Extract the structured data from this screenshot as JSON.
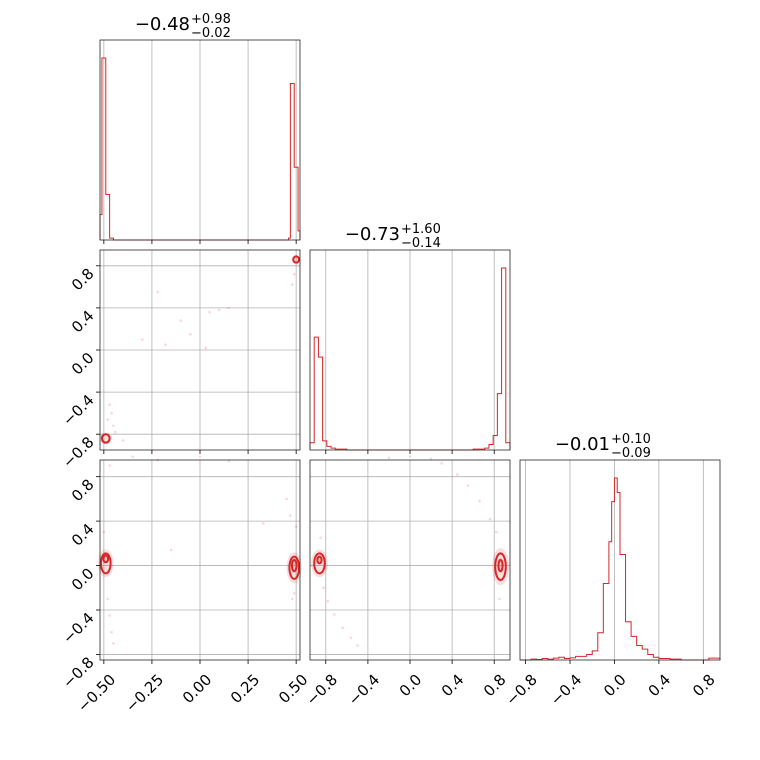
{
  "chart_data": {
    "type": "corner",
    "color": "#d62728",
    "grid": true,
    "parameters": [
      {
        "title": {
          "median": "−0.48",
          "plus": "+0.98",
          "minus": "−0.02"
        },
        "range": [
          -0.52,
          0.52
        ],
        "ticks": [
          -0.5,
          -0.25,
          0.0,
          0.25,
          0.5
        ],
        "tick_labels": [
          "−0.50",
          "−0.25",
          "0.00",
          "0.25",
          "0.50"
        ]
      },
      {
        "title": {
          "median": "−0.73",
          "plus": "+1.60",
          "minus": "−0.14"
        },
        "range": [
          -0.95,
          0.95
        ],
        "ticks": [
          -0.8,
          -0.4,
          0.0,
          0.4,
          0.8
        ],
        "tick_labels": [
          "−0.8",
          "−0.4",
          "0.0",
          "0.4",
          "0.8"
        ]
      },
      {
        "title": {
          "median": "−0.01",
          "plus": "+0.10",
          "minus": "−0.09"
        },
        "range": [
          -0.85,
          0.95
        ],
        "ticks": [
          -0.8,
          -0.4,
          0.0,
          0.4,
          0.8
        ],
        "tick_labels": [
          "−0.8",
          "−0.4",
          "0.0",
          "0.4",
          "0.8"
        ]
      }
    ],
    "histograms": [
      {
        "param": 0,
        "bins": [
          [
            -0.52,
            -0.51,
            0.14
          ],
          [
            -0.51,
            -0.49,
            1.0
          ],
          [
            -0.49,
            -0.47,
            0.25
          ],
          [
            -0.47,
            -0.45,
            0.01
          ],
          [
            -0.45,
            0.46,
            0.0
          ],
          [
            0.46,
            0.47,
            0.01
          ],
          [
            0.47,
            0.49,
            0.86
          ],
          [
            0.49,
            0.51,
            0.4
          ],
          [
            0.51,
            0.52,
            0.05
          ]
        ]
      },
      {
        "param": 1,
        "bins": [
          [
            -0.95,
            -0.91,
            0.04
          ],
          [
            -0.91,
            -0.87,
            0.62
          ],
          [
            -0.87,
            -0.83,
            0.51
          ],
          [
            -0.83,
            -0.79,
            0.05
          ],
          [
            -0.79,
            -0.75,
            0.02
          ],
          [
            -0.75,
            -0.71,
            0.01
          ],
          [
            -0.71,
            -0.6,
            0.005
          ],
          [
            -0.6,
            0.6,
            0.0
          ],
          [
            0.6,
            0.71,
            0.005
          ],
          [
            0.71,
            0.75,
            0.01
          ],
          [
            0.75,
            0.79,
            0.03
          ],
          [
            0.79,
            0.83,
            0.08
          ],
          [
            0.83,
            0.87,
            0.31
          ],
          [
            0.87,
            0.91,
            1.0
          ],
          [
            0.91,
            0.95,
            0.04
          ]
        ]
      },
      {
        "param": 2,
        "bins": [
          [
            -0.85,
            -0.75,
            0.0
          ],
          [
            -0.75,
            -0.7,
            0.005
          ],
          [
            -0.7,
            -0.65,
            0.003
          ],
          [
            -0.65,
            -0.6,
            0.008
          ],
          [
            -0.6,
            -0.55,
            0.004
          ],
          [
            -0.55,
            -0.5,
            0.01
          ],
          [
            -0.5,
            -0.45,
            0.015
          ],
          [
            -0.45,
            -0.4,
            0.008
          ],
          [
            -0.4,
            -0.35,
            0.012
          ],
          [
            -0.35,
            -0.3,
            0.02
          ],
          [
            -0.3,
            -0.25,
            0.02
          ],
          [
            -0.25,
            -0.2,
            0.03
          ],
          [
            -0.2,
            -0.15,
            0.05
          ],
          [
            -0.15,
            -0.1,
            0.15
          ],
          [
            -0.1,
            -0.05,
            0.42
          ],
          [
            -0.05,
            -0.025,
            0.65
          ],
          [
            -0.025,
            0.0,
            0.87
          ],
          [
            0.0,
            0.025,
            1.0
          ],
          [
            0.025,
            0.05,
            0.92
          ],
          [
            0.05,
            0.1,
            0.58
          ],
          [
            0.1,
            0.15,
            0.21
          ],
          [
            0.15,
            0.2,
            0.13
          ],
          [
            0.2,
            0.25,
            0.08
          ],
          [
            0.25,
            0.3,
            0.06
          ],
          [
            0.3,
            0.35,
            0.03
          ],
          [
            0.35,
            0.4,
            0.015
          ],
          [
            0.4,
            0.5,
            0.008
          ],
          [
            0.5,
            0.6,
            0.005
          ],
          [
            0.6,
            0.85,
            0.0
          ],
          [
            0.85,
            0.95,
            0.01
          ]
        ]
      }
    ],
    "pairs": [
      {
        "x_param": 0,
        "y_param": 1,
        "contours": [
          {
            "cx": -0.49,
            "cy": -0.84,
            "rx": 0.02,
            "ry": 0.04
          },
          {
            "cx": 0.5,
            "cy": 0.86,
            "rx": 0.015,
            "ry": 0.03
          }
        ],
        "points": [
          [
            -0.47,
            -0.52
          ],
          [
            -0.46,
            -0.6
          ],
          [
            -0.45,
            -0.72
          ],
          [
            -0.48,
            -0.66
          ],
          [
            -0.44,
            -0.78
          ],
          [
            -0.22,
            0.55
          ],
          [
            -0.1,
            0.28
          ],
          [
            -0.05,
            0.15
          ],
          [
            0.05,
            0.36
          ],
          [
            0.1,
            0.38
          ],
          [
            0.15,
            0.4
          ],
          [
            -0.18,
            0.05
          ],
          [
            0.49,
            0.72
          ],
          [
            0.48,
            0.62
          ],
          [
            -0.4,
            -0.86
          ],
          [
            -0.3,
            0.1
          ],
          [
            0.03,
            0.02
          ]
        ]
      },
      {
        "x_param": 0,
        "y_param": 2,
        "contours": [
          {
            "cx": -0.49,
            "cy": 0.02,
            "rx": 0.025,
            "ry": 0.09
          },
          {
            "cx": 0.49,
            "cy": -0.02,
            "rx": 0.025,
            "ry": 0.1
          },
          {
            "cx": -0.49,
            "cy": 0.06,
            "rx": 0.012,
            "ry": 0.03
          },
          {
            "cx": 0.49,
            "cy": 0.0,
            "rx": 0.012,
            "ry": 0.05
          }
        ],
        "points": [
          [
            -0.48,
            -0.3
          ],
          [
            -0.47,
            -0.45
          ],
          [
            -0.46,
            -0.6
          ],
          [
            -0.45,
            -0.7
          ],
          [
            -0.5,
            0.3
          ],
          [
            -0.47,
            0.9
          ],
          [
            -0.22,
            0.95
          ],
          [
            -0.35,
            0.98
          ],
          [
            0.0,
            0.98
          ],
          [
            0.15,
            0.94
          ],
          [
            0.47,
            0.45
          ],
          [
            0.45,
            0.6
          ],
          [
            0.49,
            -0.25
          ],
          [
            0.48,
            -0.3
          ],
          [
            0.33,
            0.38
          ],
          [
            -0.15,
            0.14
          ],
          [
            0.5,
            0.35
          ]
        ]
      },
      {
        "x_param": 1,
        "y_param": 2,
        "contours": [
          {
            "cx": -0.86,
            "cy": 0.02,
            "rx": 0.05,
            "ry": 0.09
          },
          {
            "cx": 0.86,
            "cy": -0.01,
            "rx": 0.05,
            "ry": 0.12
          },
          {
            "cx": -0.86,
            "cy": 0.05,
            "rx": 0.02,
            "ry": 0.03
          },
          {
            "cx": 0.86,
            "cy": 0.0,
            "rx": 0.02,
            "ry": 0.05
          }
        ],
        "points": [
          [
            -0.82,
            -0.2
          ],
          [
            -0.78,
            -0.32
          ],
          [
            -0.72,
            -0.44
          ],
          [
            -0.64,
            -0.56
          ],
          [
            -0.56,
            -0.65
          ],
          [
            -0.5,
            -0.72
          ],
          [
            -0.85,
            0.25
          ],
          [
            0.82,
            0.3
          ],
          [
            0.76,
            0.42
          ],
          [
            0.66,
            0.58
          ],
          [
            0.55,
            0.72
          ],
          [
            0.45,
            0.82
          ],
          [
            0.3,
            0.92
          ],
          [
            0.0,
            0.98
          ],
          [
            -0.2,
            0.97
          ],
          [
            0.2,
            0.96
          ],
          [
            0.85,
            -0.3
          ]
        ]
      }
    ]
  }
}
